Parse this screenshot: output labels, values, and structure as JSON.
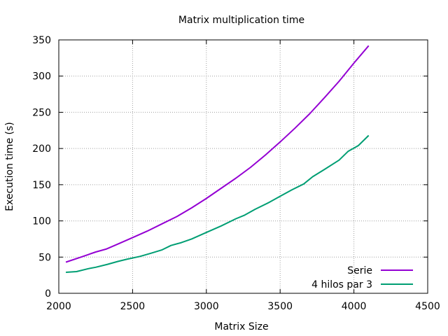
{
  "chart_data": {
    "type": "line",
    "title": "Matrix multiplication time",
    "xlabel": "Matrix Size",
    "ylabel": "Execution time (s)",
    "xlim": [
      2000,
      4500
    ],
    "ylim": [
      0,
      350
    ],
    "xticks": [
      2000,
      2500,
      3000,
      3500,
      4000,
      4500
    ],
    "yticks": [
      0,
      50,
      100,
      150,
      200,
      250,
      300,
      350
    ],
    "grid": true,
    "legend_position": "bottom-right",
    "series": [
      {
        "name": "Serie",
        "color": "#9400d3",
        "x": [
          2048,
          2150,
          2250,
          2320,
          2400,
          2500,
          2600,
          2700,
          2800,
          2900,
          3000,
          3100,
          3200,
          3300,
          3400,
          3500,
          3600,
          3700,
          3800,
          3900,
          4000,
          4100
        ],
        "y": [
          43,
          50,
          57,
          61,
          68,
          77,
          86,
          96,
          106,
          118,
          131,
          145,
          159,
          174,
          191,
          209,
          228,
          248,
          270,
          293,
          318,
          342
        ]
      },
      {
        "name": "4 hilos par 3",
        "color": "#009e73",
        "x": [
          2048,
          2120,
          2200,
          2250,
          2330,
          2400,
          2460,
          2550,
          2620,
          2700,
          2760,
          2830,
          2900,
          3000,
          3100,
          3200,
          3260,
          3330,
          3420,
          3500,
          3580,
          3660,
          3720,
          3800,
          3900,
          3960,
          4030,
          4100
        ],
        "y": [
          29,
          30,
          34,
          36,
          40,
          44,
          47,
          51,
          55,
          60,
          66,
          70,
          75,
          84,
          93,
          103,
          108,
          116,
          125,
          134,
          143,
          151,
          161,
          171,
          184,
          196,
          204,
          218
        ]
      }
    ]
  }
}
